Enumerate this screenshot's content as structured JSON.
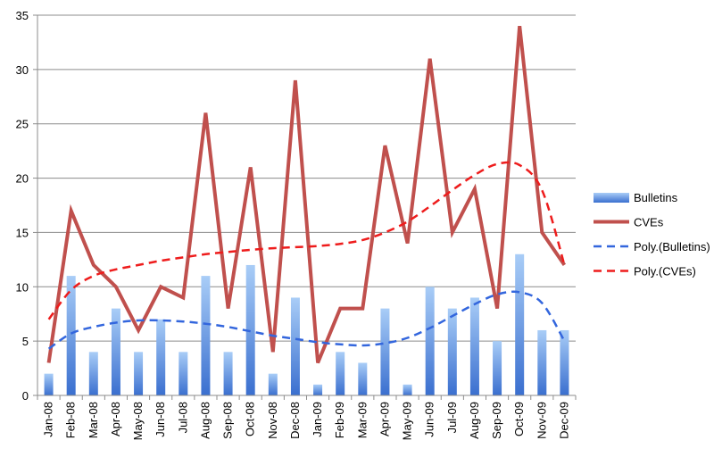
{
  "chart_data": {
    "type": "bar",
    "categories": [
      "Jan-08",
      "Feb-08",
      "Mar-08",
      "Apr-08",
      "May-08",
      "Jun-08",
      "Jul-08",
      "Aug-08",
      "Sep-08",
      "Oct-08",
      "Nov-08",
      "Dec-08",
      "Jan-09",
      "Feb-09",
      "Mar-09",
      "Apr-09",
      "May-09",
      "Jun-09",
      "Jul-09",
      "Aug-09",
      "Sep-09",
      "Oct-09",
      "Nov-09",
      "Dec-09"
    ],
    "ylim": [
      0,
      35
    ],
    "yticks": [
      0,
      5,
      10,
      15,
      20,
      25,
      30,
      35
    ],
    "grid": true,
    "legend_position": "right",
    "series": [
      {
        "name": "Bulletins",
        "kind": "bar",
        "color": "#5b8fd9",
        "values": [
          2,
          11,
          4,
          8,
          4,
          7,
          4,
          11,
          4,
          12,
          2,
          9,
          1,
          4,
          3,
          8,
          1,
          10,
          8,
          9,
          5,
          13,
          6,
          6
        ]
      },
      {
        "name": "CVEs",
        "kind": "line",
        "color": "#c0504d",
        "values": [
          3,
          17,
          12,
          10,
          6,
          10,
          9,
          26,
          8,
          21,
          4,
          29,
          3,
          8,
          8,
          23,
          14,
          31,
          15,
          19,
          8,
          34,
          15,
          12
        ]
      },
      {
        "name": "Poly.(Bulletins)",
        "kind": "trendline",
        "color": "#3366dd",
        "values": [
          4.3,
          5.7,
          6.3,
          6.7,
          6.9,
          6.9,
          6.8,
          6.6,
          6.3,
          5.9,
          5.5,
          5.2,
          4.9,
          4.7,
          4.6,
          4.8,
          5.3,
          6.2,
          7.3,
          8.4,
          9.3,
          9.5,
          8.5,
          5.0
        ]
      },
      {
        "name": "Poly.(CVEs)",
        "kind": "trendline",
        "color": "#ee1c1c",
        "values": [
          7,
          9.7,
          11,
          11.6,
          12,
          12.4,
          12.7,
          13,
          13.2,
          13.4,
          13.55,
          13.65,
          13.75,
          13.95,
          14.3,
          15,
          16,
          17.4,
          18.9,
          20.3,
          21.3,
          21.2,
          18.9,
          12
        ]
      }
    ]
  }
}
